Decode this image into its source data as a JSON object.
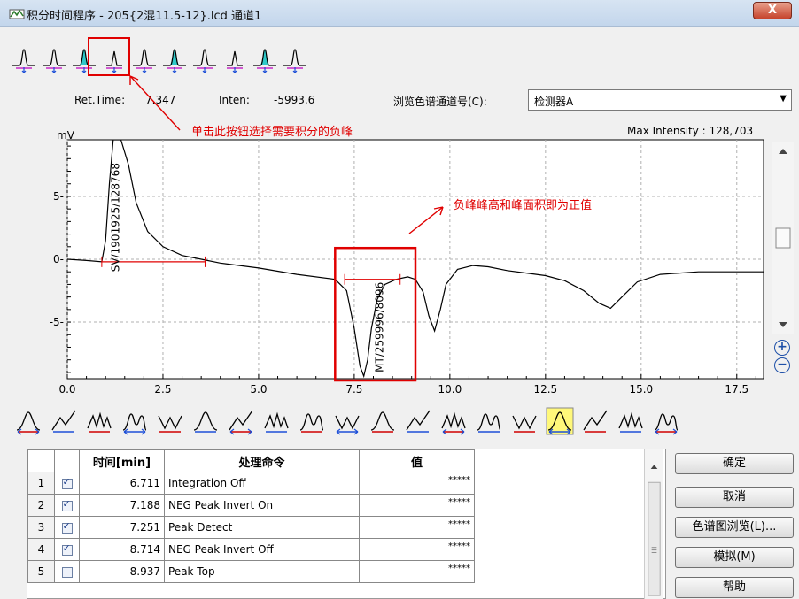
{
  "window": {
    "title": "积分时间程序 - 205{2混11.5-12}.lcd 通道1",
    "close_label": "X"
  },
  "toolbar_top": {
    "icons": [
      "peak-width-icon",
      "peak-slope-icon",
      "neg-peak-icon",
      "neg-peak-alt-icon",
      "peak-detect-icon",
      "multi-peak-icon",
      "peak-top-icon",
      "noise-icon",
      "peak-split-icon",
      "peak-skip-icon"
    ],
    "selected_index": 2
  },
  "info": {
    "ret_time_label": "Ret.Time:",
    "ret_time_value": "7.347",
    "inten_label": "Inten:",
    "inten_value": "-5993.6",
    "channel_label": "浏览色谱通道号(C):",
    "channel_value": "检测器A"
  },
  "annotations": {
    "click_hint": "单击此按钮选择需要积分的负峰",
    "result_hint": "负峰峰高和峰面积即为正值"
  },
  "chart_data": {
    "type": "line",
    "title": "",
    "max_intensity_label": "Max Intensity : 128,703",
    "ylabel": "mV",
    "xlabel": "",
    "xlim": [
      0,
      18.2
    ],
    "ylim": [
      -9.5,
      9.5
    ],
    "x_ticks": [
      "0.0",
      "2.5",
      "5.0",
      "7.5",
      "10.0",
      "12.5",
      "15.0",
      "17.5"
    ],
    "y_ticks": [
      "5-",
      "0-",
      "-5-"
    ],
    "peak_labels": [
      "SV/1901925/128768",
      "MT/259996/8096"
    ],
    "grid": true,
    "x": [
      0,
      0.5,
      0.9,
      1.0,
      1.1,
      1.2,
      1.4,
      1.6,
      1.8,
      2.1,
      2.5,
      3.0,
      3.5,
      4.0,
      5.0,
      6.0,
      7.0,
      7.3,
      7.5,
      7.65,
      7.75,
      7.85,
      7.95,
      8.1,
      8.3,
      8.6,
      8.9,
      9.1,
      9.3,
      9.45,
      9.6,
      9.75,
      9.9,
      10.2,
      10.6,
      11.0,
      11.5,
      12.0,
      12.5,
      13.0,
      13.5,
      13.9,
      14.2,
      14.5,
      14.9,
      15.5,
      16.5,
      17.5,
      18.2
    ],
    "y": [
      0.0,
      -0.1,
      -0.2,
      1.5,
      6.0,
      9.5,
      9.5,
      7.5,
      4.5,
      2.2,
      1.0,
      0.3,
      0.0,
      -0.3,
      -0.7,
      -1.2,
      -1.6,
      -2.5,
      -5.5,
      -8.5,
      -9.3,
      -8.0,
      -5.5,
      -3.2,
      -2.0,
      -1.6,
      -1.4,
      -1.6,
      -2.6,
      -4.5,
      -5.7,
      -4.0,
      -2.0,
      -0.8,
      -0.5,
      -0.6,
      -0.9,
      -1.1,
      -1.3,
      -1.7,
      -2.5,
      -3.5,
      -3.9,
      -3.0,
      -1.8,
      -1.2,
      -1.0,
      -1.0,
      -1.0
    ]
  },
  "toolbar_bottom": {
    "icons": [
      "width-icon",
      "slope-icon",
      "drift-icon",
      "min-area-icon",
      "tailing-icon",
      "multi-peak-icon",
      "integration-on-icon",
      "integration-off-icon",
      "neg-peak-on-icon",
      "neg-peak-off-icon",
      "peak-detect-icon",
      "peak-top-icon",
      "valley-icon",
      "baseline-icon",
      "tangent-icon",
      "forced-peak-icon",
      "front-tangent-icon",
      "rear-tangent-icon",
      "program-list-icon"
    ],
    "highlighted_index": 15
  },
  "table": {
    "headers": [
      "",
      "",
      "时间[min]",
      "处理命令",
      "值"
    ],
    "rows": [
      {
        "num": "1",
        "checked": true,
        "time": "6.711",
        "command": "Integration Off",
        "value": "*****"
      },
      {
        "num": "2",
        "checked": true,
        "time": "7.188",
        "command": "NEG Peak Invert On",
        "value": "*****"
      },
      {
        "num": "3",
        "checked": true,
        "time": "7.251",
        "command": "Peak Detect",
        "value": "*****"
      },
      {
        "num": "4",
        "checked": true,
        "time": "8.714",
        "command": "NEG Peak Invert Off",
        "value": "*****"
      },
      {
        "num": "5",
        "checked": false,
        "time": "8.937",
        "command": "Peak Top",
        "value": "*****"
      }
    ]
  },
  "buttons": {
    "ok": "确定",
    "cancel": "取消",
    "browse": "色谱图浏览(L)...",
    "simulate": "模拟(M)",
    "help": "帮助"
  },
  "colors": {
    "annotation": "#e00000",
    "trace": "#000000",
    "grid": "#b0b0b0"
  }
}
